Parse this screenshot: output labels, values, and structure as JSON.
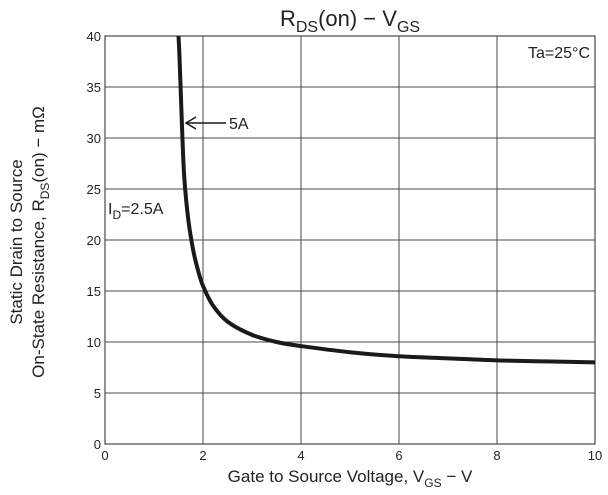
{
  "chart_data": {
    "type": "line",
    "title": {
      "main": "R",
      "main_sub": "DS",
      "main_rest": "(on)  −  V",
      "main_sub2": "GS"
    },
    "xlabel": {
      "main": "Gate to Source Voltage, V",
      "sub": "GS",
      "suffix": "  −  V"
    },
    "ylabel": {
      "line1": "Static Drain to Source",
      "line2_prefix": "On-State Resistance, R",
      "line2_sub": "DS",
      "line2_suffix": "(on)  −  mΩ"
    },
    "xlim": [
      0,
      10
    ],
    "ylim": [
      0,
      40
    ],
    "xticks": [
      0,
      2,
      4,
      6,
      8,
      10
    ],
    "yticks": [
      0,
      5,
      10,
      15,
      20,
      25,
      30,
      35,
      40
    ],
    "xgrid": [
      0,
      2,
      4,
      6,
      8,
      10
    ],
    "ygrid": [
      0,
      5,
      10,
      15,
      20,
      25,
      30,
      35,
      40
    ],
    "grid": true,
    "series": [
      {
        "name": "5A",
        "x": [
          1.5,
          1.52,
          1.55,
          1.58,
          1.62,
          1.7,
          1.8,
          1.9,
          2.0,
          2.2,
          2.5,
          3.0,
          3.5,
          4.0,
          5.0,
          6.0,
          7.0,
          8.0,
          9.0,
          10.0
        ],
        "y": [
          40,
          38,
          34,
          30,
          26,
          22,
          19,
          17,
          15.5,
          13.6,
          12.0,
          10.7,
          10.0,
          9.6,
          9.0,
          8.6,
          8.4,
          8.2,
          8.1,
          8.0
        ]
      }
    ],
    "annotations": {
      "temp": "Ta=25°C",
      "label_5a": "5A",
      "label_id_prefix": "I",
      "label_id_sub": "D",
      "label_id_suffix": "=2.5A"
    },
    "line_color": "#1a1a1a",
    "grid_color": "#4a4a4a"
  }
}
